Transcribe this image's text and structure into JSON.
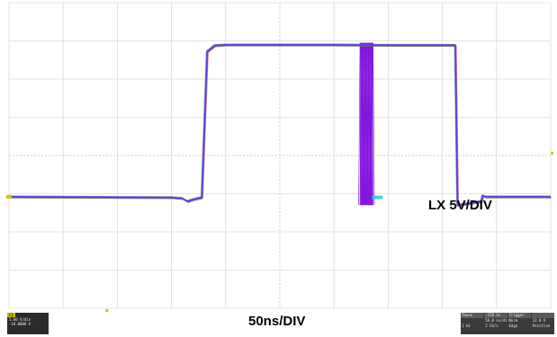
{
  "chart_data": {
    "type": "line",
    "title": "",
    "xlabel": "50ns/DIV",
    "ylabel": "",
    "trace_label": "LX 5V/DIV",
    "grid": true,
    "divisions": {
      "x": 10,
      "y": 8
    },
    "xlim": [
      0,
      500
    ],
    "ylim": [
      -4,
      4
    ],
    "series": [
      {
        "name": "",
        "color": "#5a3fd6",
        "x": [
          0,
          150,
          160,
          165,
          170,
          178,
          183,
          190,
          200,
          250,
          300,
          350,
          392,
          412,
          414,
          425,
          436,
          437,
          437.5,
          440,
          460,
          500
        ],
        "y": [
          -1.08,
          -1.1,
          -1.12,
          -1.2,
          -1.15,
          -1.1,
          2.72,
          2.88,
          2.9,
          2.9,
          2.9,
          2.89,
          2.89,
          2.89,
          -1.3,
          -1.25,
          -1.2,
          -1.1,
          -1.05,
          -1.08,
          -1.08,
          -1.08
        ]
      }
    ],
    "burst": {
      "x": [
        324,
        336
      ],
      "y": [
        -1.3,
        2.95
      ],
      "color": "#9a1ff0"
    }
  },
  "scope": {
    "channel_badge": {
      "tag": "C1",
      "lines": [
        "5.00 V/div",
        "-10.0000 V"
      ]
    },
    "acquisition_panel": {
      "headers": [
        "Tbase",
        "-150 ns",
        "Trigger",
        ""
      ],
      "rows": [
        [
          "",
          "50.0 ns/div",
          "Norm",
          "12.0 V"
        ],
        [
          "1 kS",
          "2 GS/s",
          "Edge",
          "Positive"
        ]
      ]
    }
  }
}
